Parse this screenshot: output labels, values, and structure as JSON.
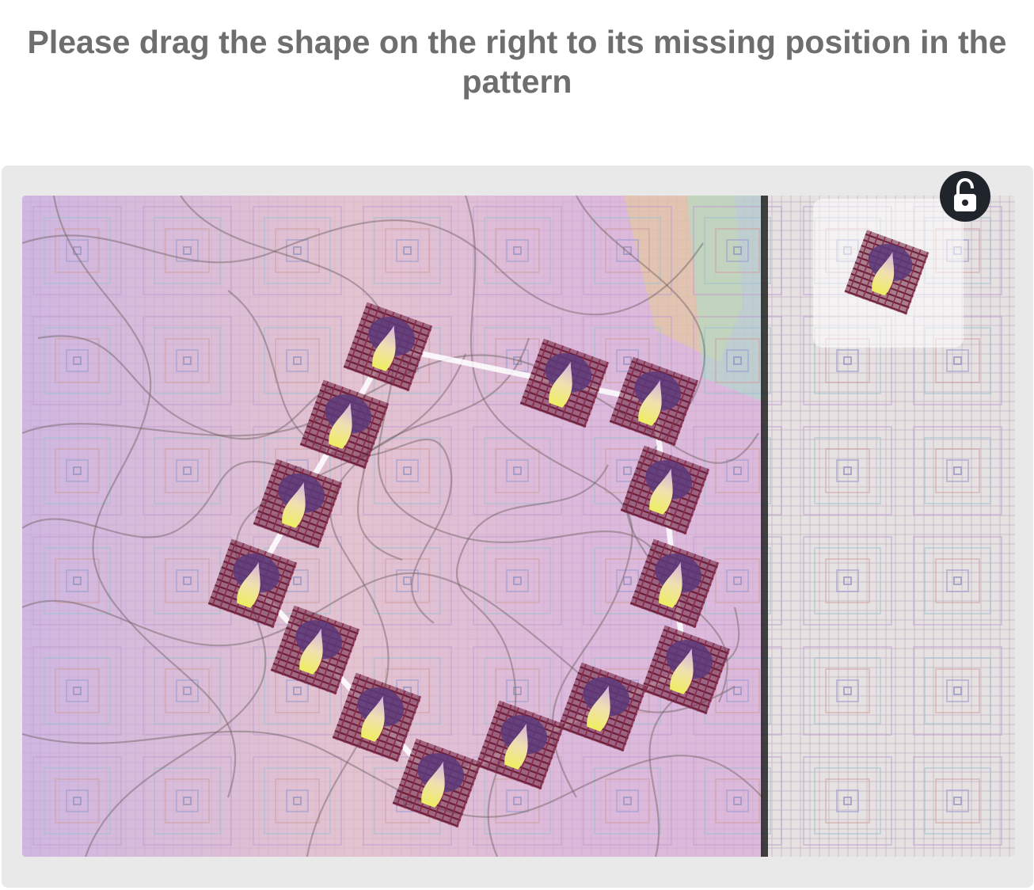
{
  "instruction": "Please drag the shape on the right to its missing position in the pattern",
  "icons": {
    "lock": "lock-open-icon",
    "tile": "flower-tile-icon"
  },
  "colors": {
    "text": "#6e6e6e",
    "frame": "#e9e9e9",
    "lock_button": "#1f252b",
    "tile_dark": "#6b1f3a",
    "tile_purple": "#5a3a7a",
    "tile_yellow": "#e8e860",
    "path": "#ffffff"
  }
}
